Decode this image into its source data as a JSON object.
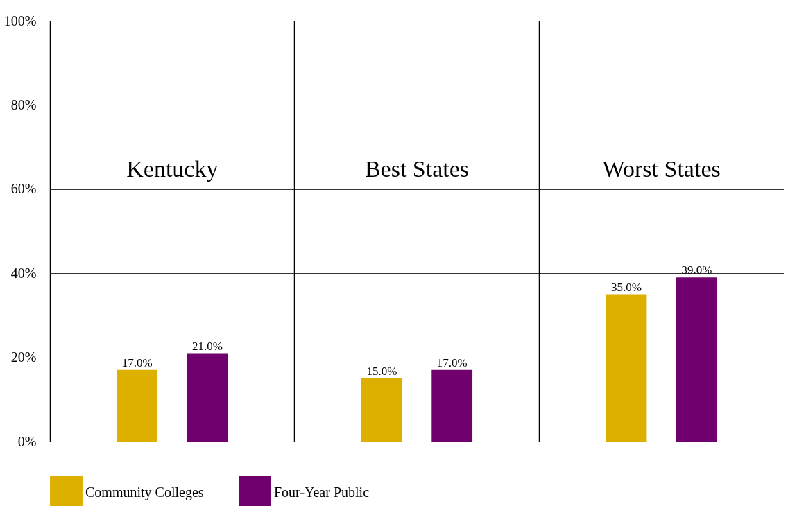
{
  "chart_data": {
    "type": "bar",
    "categories": [
      "Kentucky",
      "Best States",
      "Worst States"
    ],
    "series": [
      {
        "name": "Community Colleges",
        "color": "#ddb000",
        "values": [
          17.0,
          15.0,
          35.0
        ],
        "value_labels": [
          "17.0%",
          "15.0%",
          "35.0%"
        ]
      },
      {
        "name": "Four-Year Public",
        "color": "#70006e",
        "values": [
          21.0,
          17.0,
          39.0
        ],
        "value_labels": [
          "21.0%",
          "17.0%",
          "39.0%"
        ]
      }
    ],
    "ylim": [
      0,
      100
    ],
    "yticks": [
      {
        "value": 0,
        "label": "0%"
      },
      {
        "value": 20,
        "label": "20%"
      },
      {
        "value": 40,
        "label": "40%"
      },
      {
        "value": 60,
        "label": "60%"
      },
      {
        "value": 80,
        "label": "80%"
      },
      {
        "value": 100,
        "label": "100%"
      }
    ],
    "grid": true,
    "legend": "bottom",
    "tick_labels": "y"
  }
}
